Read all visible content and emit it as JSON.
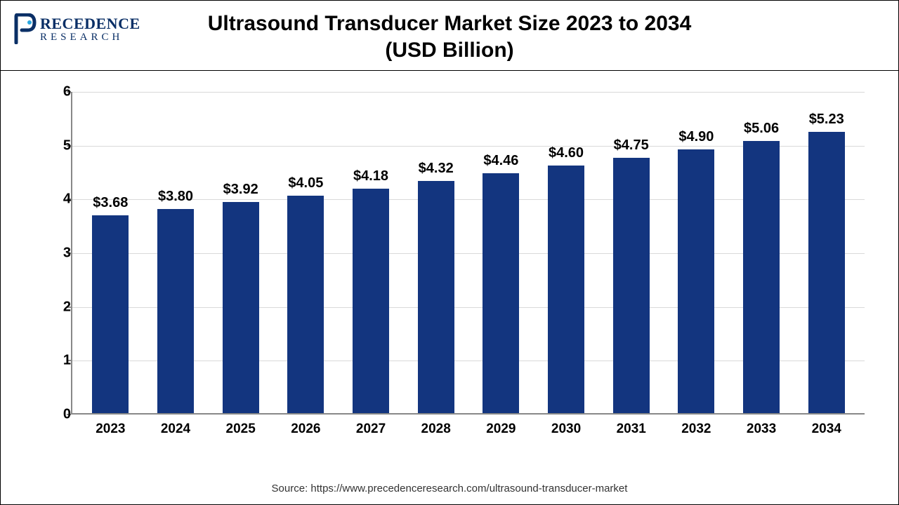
{
  "logo": {
    "brand_top": "RECEDENCE",
    "brand_bottom": "RESEARCH",
    "color": "#0a2f66"
  },
  "title": {
    "line1": "Ultrasound Transducer Market Size 2023 to 2034",
    "line2": "(USD Billion)",
    "fontsize": 30,
    "color": "#000000"
  },
  "chart": {
    "type": "bar",
    "categories": [
      "2023",
      "2024",
      "2025",
      "2026",
      "2027",
      "2028",
      "2029",
      "2030",
      "2031",
      "2032",
      "2033",
      "2034"
    ],
    "values": [
      3.68,
      3.8,
      3.92,
      4.05,
      4.18,
      4.32,
      4.46,
      4.6,
      4.75,
      4.9,
      5.06,
      5.23
    ],
    "value_labels": [
      "$3.68",
      "$3.80",
      "$3.92",
      "$4.05",
      "$4.18",
      "$4.32",
      "$4.46",
      "$4.60",
      "$4.75",
      "$4.90",
      "$5.06",
      "$5.23"
    ],
    "bar_color": "#13357f",
    "ylim": [
      0,
      6
    ],
    "yticks": [
      0,
      1,
      2,
      3,
      4,
      5,
      6
    ],
    "grid_color": "#d9d9d9",
    "axis_color": "#888888",
    "background_color": "#ffffff",
    "label_fontsize": 19,
    "value_fontsize": 20,
    "ytick_fontsize": 20,
    "bar_width_ratio": 0.56
  },
  "source": {
    "text": "Source: https://www.precedenceresearch.com/ultrasound-transducer-market",
    "fontsize": 15,
    "color": "#333333"
  }
}
